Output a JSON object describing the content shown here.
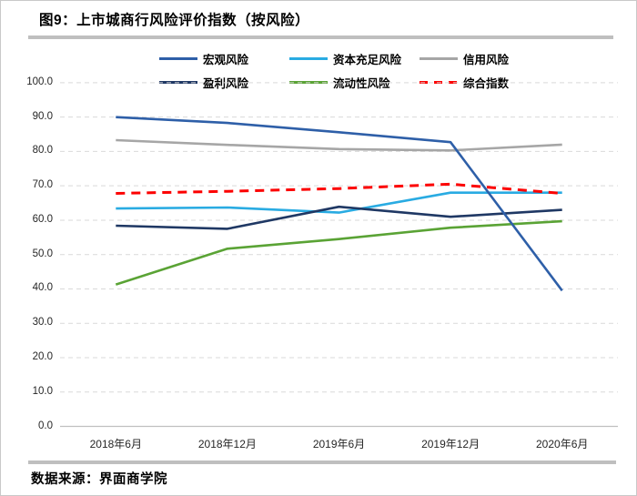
{
  "title": "图9：上市城商行风险评价指数（按风险）",
  "source": "数据来源：界面商学院",
  "chart_data": {
    "type": "line",
    "title": "图9：上市城商行风险评价指数（按风险）",
    "categories": [
      "2018年6月",
      "2018年12月",
      "2019年6月",
      "2019年12月",
      "2020年6月"
    ],
    "series": [
      {
        "id": "macro-risk",
        "name": "宏观风险",
        "color": "#2e5fa8",
        "style": "solid",
        "values": [
          90.0,
          88.3,
          85.6,
          82.7,
          39.5
        ]
      },
      {
        "id": "capital-adequacy-risk",
        "name": "资本充足风险",
        "color": "#29abe2",
        "style": "solid",
        "values": [
          63.4,
          63.7,
          62.2,
          68.0,
          68.0
        ]
      },
      {
        "id": "credit-risk",
        "name": "信用风险",
        "color": "#a6a6a6",
        "style": "solid",
        "values": [
          83.3,
          81.9,
          80.7,
          80.3,
          82.0
        ]
      },
      {
        "id": "profit-risk",
        "name": "盈利风险",
        "color": "#1f3864",
        "style": "solid",
        "values": [
          58.4,
          57.5,
          63.9,
          61.0,
          63.0
        ]
      },
      {
        "id": "liquidity-risk",
        "name": "流动性风险",
        "color": "#5aa335",
        "style": "solid",
        "values": [
          41.3,
          51.7,
          54.5,
          57.8,
          59.7
        ]
      },
      {
        "id": "composite-index",
        "name": "综合指数",
        "color": "#fc0000",
        "style": "dashed",
        "values": [
          67.8,
          68.4,
          69.2,
          70.5,
          67.8
        ]
      }
    ],
    "yticks": [
      "0.0",
      "10.0",
      "20.0",
      "30.0",
      "40.0",
      "50.0",
      "60.0",
      "70.0",
      "80.0",
      "90.0",
      "100.0"
    ],
    "ylim": [
      0,
      100
    ],
    "ytick_step": 10,
    "grid": "horizontal-dashed",
    "gridline_color": "#d9d9d9",
    "axis_line_color": "#bfbfbf",
    "legend_position": "top",
    "draw_order": [
      "credit-risk",
      "capital-adequacy-risk",
      "liquidity-risk",
      "profit-risk",
      "macro-risk",
      "composite-index"
    ]
  }
}
